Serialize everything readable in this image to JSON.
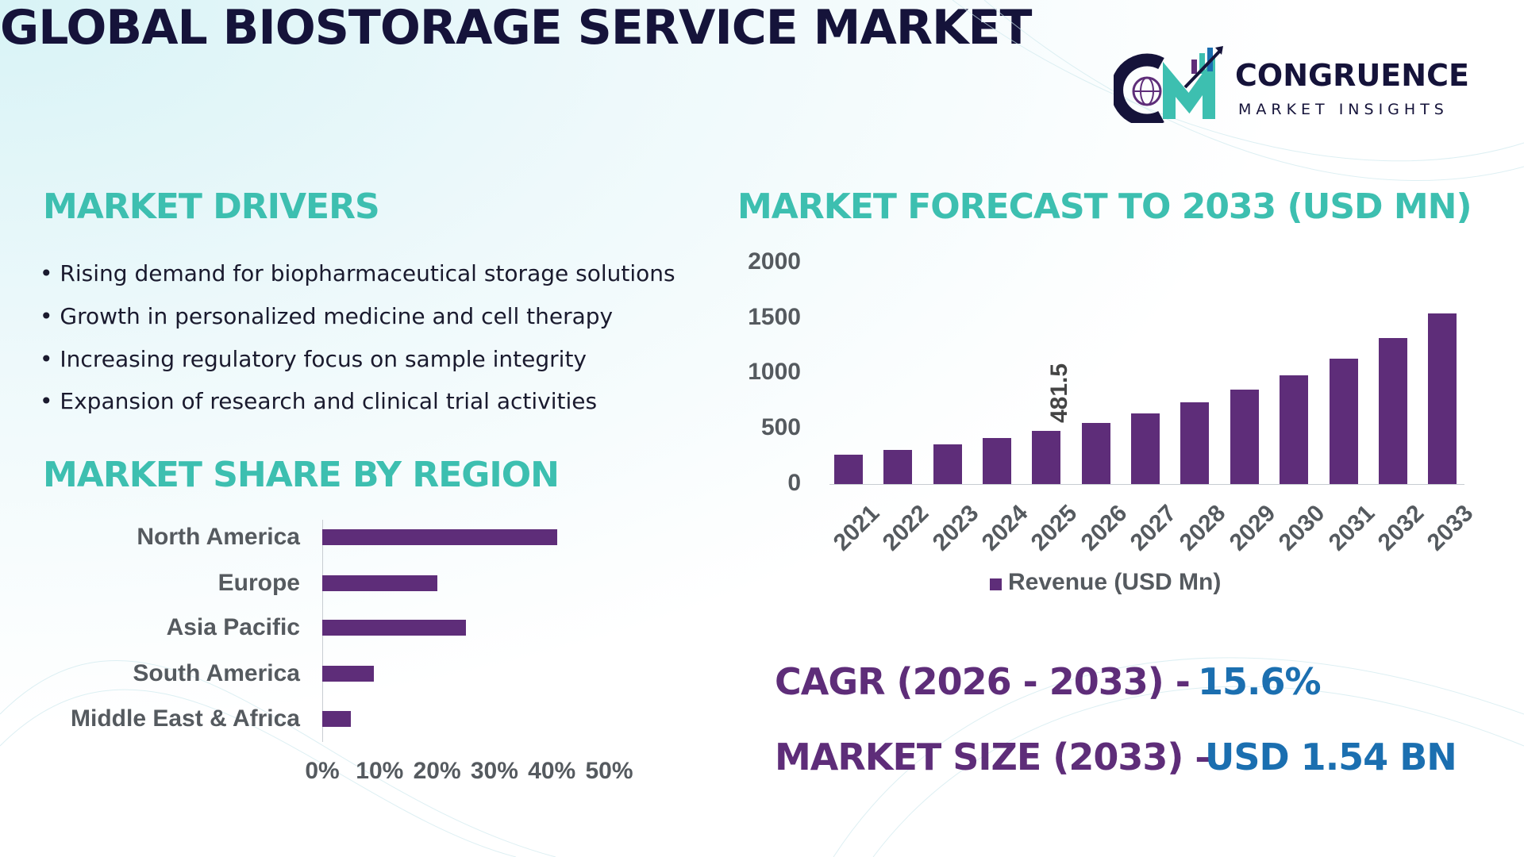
{
  "title": "GLOBAL BIOSTORAGE SERVICE MARKET",
  "logo": {
    "name": "CONGRUENCE",
    "tagline": "MARKET INSIGHTS",
    "monogram": "CM"
  },
  "drivers": {
    "heading": "MARKET DRIVERS",
    "items": [
      "• Rising demand for biopharmaceutical storage solutions",
      "• Growth in personalized medicine and cell therapy",
      "• Increasing regulatory focus on sample integrity",
      "• Expansion of research and clinical trial activities"
    ]
  },
  "colors": {
    "heading": "#3dbfb0",
    "bar": "#5e2d79",
    "title": "#15133a",
    "value": "#1b6fb0"
  },
  "chart_data": [
    {
      "type": "bar",
      "orientation": "horizontal",
      "title": "MARKET SHARE BY REGION",
      "categories": [
        "North America",
        "Europe",
        "Asia Pacific",
        "South America",
        "Middle East & Africa"
      ],
      "values": [
        41,
        20,
        25,
        9,
        5
      ],
      "xticks": [
        "0%",
        "10%",
        "20%",
        "30%",
        "40%",
        "50%"
      ],
      "xlim": [
        0,
        50
      ],
      "grid": false
    },
    {
      "type": "bar",
      "title": "MARKET FORECAST TO 2033 (USD MN)",
      "categories": [
        "2021",
        "2022",
        "2023",
        "2024",
        "2025",
        "2026",
        "2027",
        "2028",
        "2029",
        "2030",
        "2031",
        "2032",
        "2033"
      ],
      "series": [
        {
          "name": "Revenue (USD Mn)",
          "values": [
            263,
            307,
            360,
            412,
            481.5,
            553,
            640,
            737,
            851,
            982,
            1132,
            1316,
            1540
          ]
        }
      ],
      "data_labels": {
        "2025": "481.5"
      },
      "yticks": [
        "0",
        "500",
        "1000",
        "1500",
        "2000"
      ],
      "ylim": [
        0,
        2000
      ],
      "legend": "bottom",
      "grid": false
    }
  ],
  "cagr": {
    "label": "CAGR (2026 - 2033) -",
    "value": "15.6%"
  },
  "market_size": {
    "label": "MARKET SIZE (2033) –",
    "value": "USD 1.54 BN"
  }
}
